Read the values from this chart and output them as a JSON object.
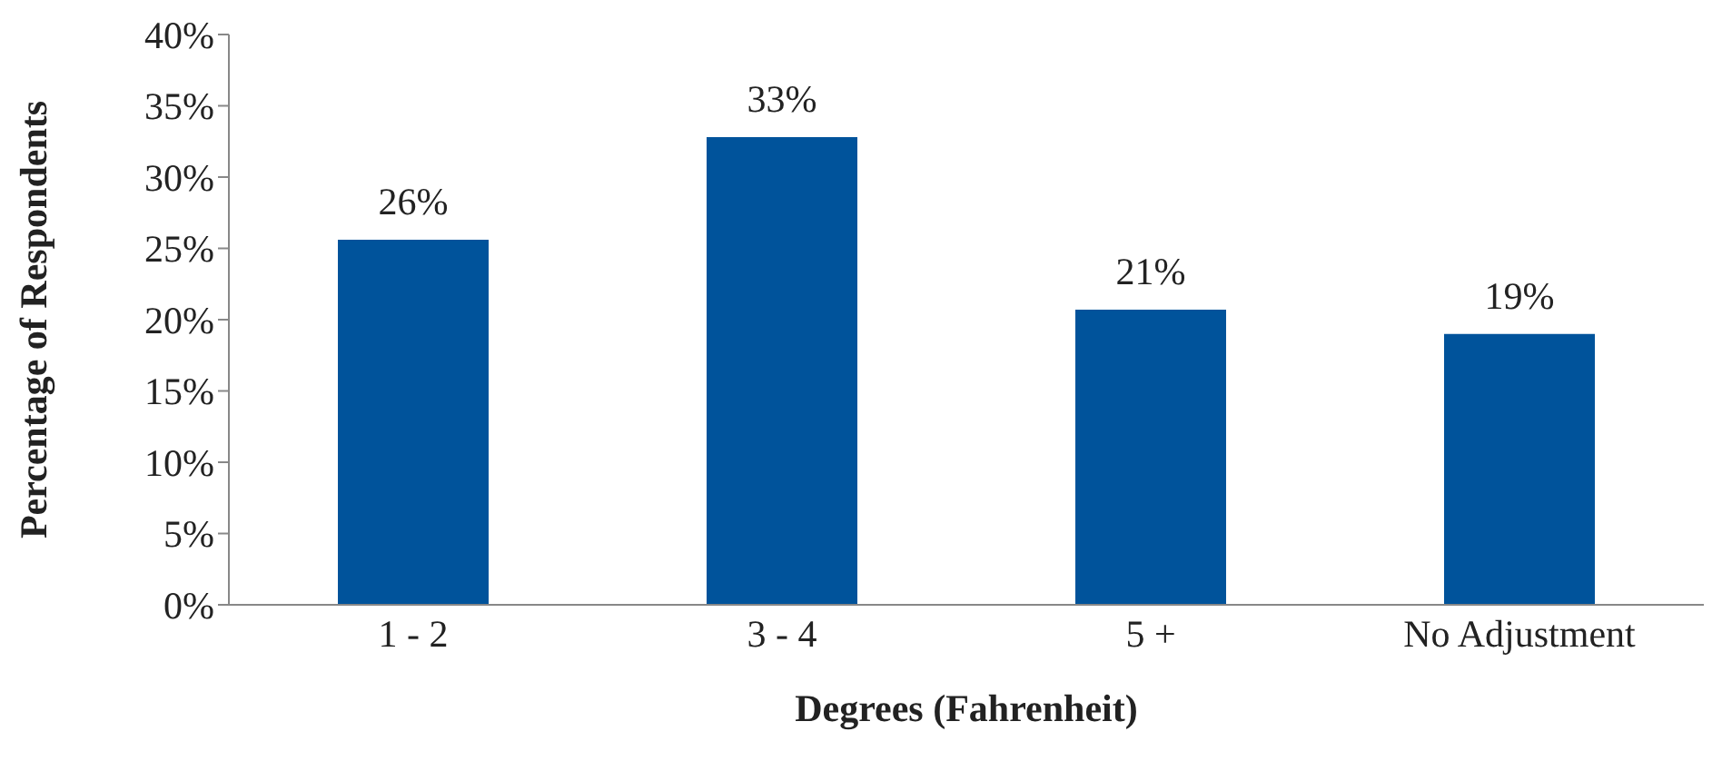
{
  "chart_data": {
    "type": "bar",
    "xlabel": "Degrees (Fahrenheit)",
    "ylabel": "Percentage of Respondents",
    "categories": [
      "1 - 2",
      "3 - 4",
      "5 +",
      "No Adjustment"
    ],
    "values": [
      25.6,
      32.8,
      20.7,
      19
    ],
    "value_labels": [
      "26%",
      "33%",
      "21%",
      "19%"
    ],
    "color": "#00539b",
    "ylim": [
      0,
      40
    ],
    "yticks": [
      {
        "value": 0,
        "label": "0%"
      },
      {
        "value": 5,
        "label": "5%"
      },
      {
        "value": 10,
        "label": "10%"
      },
      {
        "value": 15,
        "label": "15%"
      },
      {
        "value": 20,
        "label": "20%"
      },
      {
        "value": 25,
        "label": "25%"
      },
      {
        "value": 30,
        "label": "30%"
      },
      {
        "value": 35,
        "label": "35%"
      },
      {
        "value": 40,
        "label": "40%"
      }
    ],
    "grid": false,
    "legend": false
  }
}
